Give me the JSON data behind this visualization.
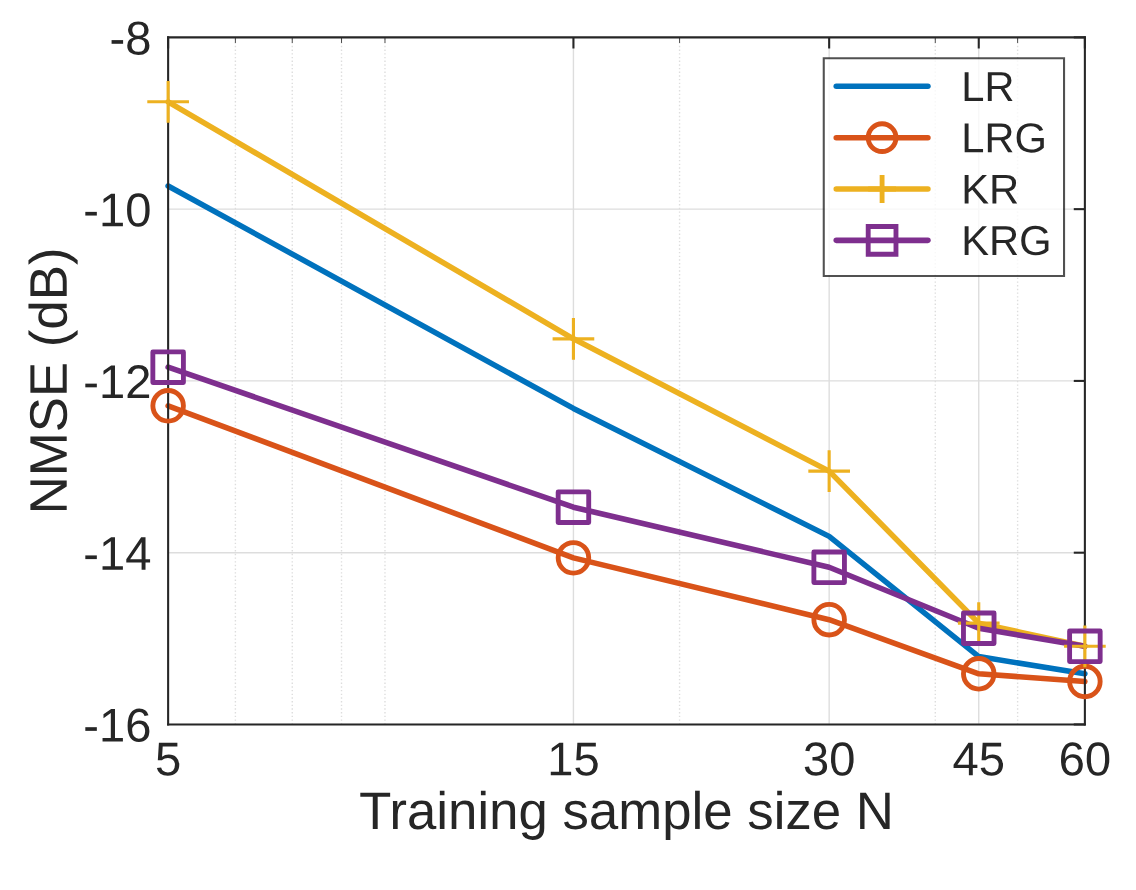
{
  "chart_data": {
    "type": "line",
    "xlabel": "Training sample size N",
    "ylabel": "NMSE (dB)",
    "log": "x",
    "x": [
      5,
      15,
      30,
      45,
      60
    ],
    "xlim": [
      5,
      60
    ],
    "xticks": [
      5,
      15,
      30,
      45,
      60
    ],
    "ylim": [
      -16,
      -8
    ],
    "yticks": [
      -16,
      -14,
      -12,
      -10,
      -8
    ],
    "grid": true,
    "legend": "top right",
    "series": [
      {
        "name": "LR",
        "color": "#0072bd",
        "marker": "none",
        "values": [
          -9.73,
          -12.32,
          -13.81,
          -15.21,
          -15.41
        ]
      },
      {
        "name": "LRG",
        "color": "#d95319",
        "marker": "circle",
        "values": [
          -12.29,
          -14.06,
          -14.78,
          -15.41,
          -15.5
        ]
      },
      {
        "name": "KR",
        "color": "#edb120",
        "marker": "cross",
        "values": [
          -8.75,
          -11.51,
          -13.05,
          -14.82,
          -15.09
        ]
      },
      {
        "name": "KRG",
        "color": "#7e2f8e",
        "marker": "square",
        "values": [
          -11.84,
          -13.47,
          -14.17,
          -14.88,
          -15.09
        ]
      }
    ]
  }
}
